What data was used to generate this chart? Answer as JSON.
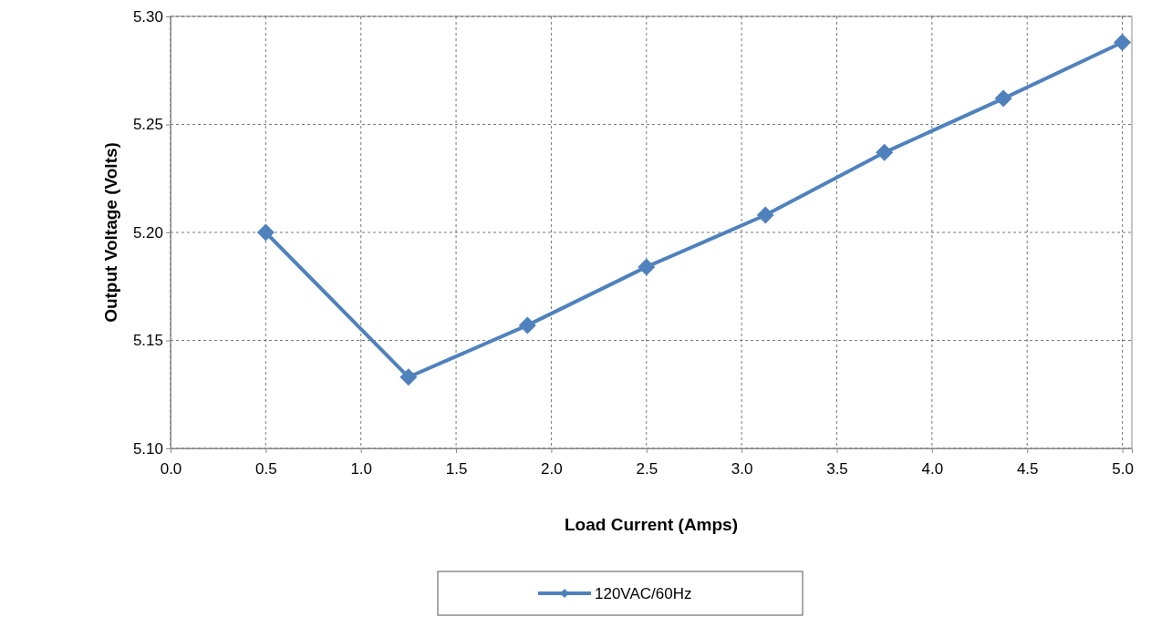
{
  "chart_data": {
    "type": "line",
    "xlabel": "Load Current (Amps)",
    "ylabel": "Output Voltage (Volts)",
    "xlim": [
      0,
      5.05
    ],
    "xticks": [
      {
        "value": 0,
        "label": "0.0"
      },
      {
        "value": 0.5,
        "label": "0.5"
      },
      {
        "value": 1,
        "label": "1.0"
      },
      {
        "value": 1.5,
        "label": "1.5"
      },
      {
        "value": 2,
        "label": "2.0"
      },
      {
        "value": 2.5,
        "label": "2.5"
      },
      {
        "value": 3,
        "label": "3.0"
      },
      {
        "value": 3.5,
        "label": "3.5"
      },
      {
        "value": 4,
        "label": "4.0"
      },
      {
        "value": 4.5,
        "label": "4.5"
      },
      {
        "value": 5,
        "label": "5.0"
      }
    ],
    "ylim": [
      5.1,
      5.3
    ],
    "yticks": [
      {
        "value": 5.1,
        "label": "5.10"
      },
      {
        "value": 5.15,
        "label": "5.15"
      },
      {
        "value": 5.2,
        "label": "5.20"
      },
      {
        "value": 5.25,
        "label": "5.25"
      },
      {
        "value": 5.3,
        "label": "5.30"
      }
    ],
    "x": [
      0.5,
      1.25,
      1.875,
      2.5,
      3.125,
      3.75,
      4.375,
      5.0
    ],
    "series": [
      {
        "name": "120VAC/60Hz",
        "color": "#4f81bd",
        "values": [
          5.2,
          5.133,
          5.157,
          5.184,
          5.208,
          5.237,
          5.262,
          5.288
        ]
      }
    ],
    "grid": true,
    "legend": "bottom",
    "marker": "diamond",
    "line_style": "solid"
  }
}
